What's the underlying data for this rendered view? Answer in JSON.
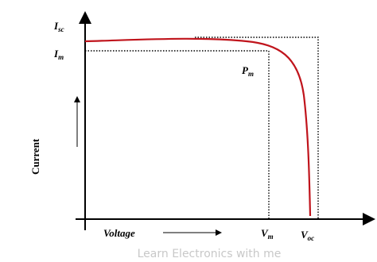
{
  "labels": {
    "isc": {
      "main": "I",
      "sub": "sc"
    },
    "im": {
      "main": "I",
      "sub": "m"
    },
    "pm": {
      "main": "P",
      "sub": "m"
    },
    "vm": {
      "main": "V",
      "sub": "m"
    },
    "voc": {
      "main": "V",
      "sub": "oc"
    },
    "x_axis": "Voltage",
    "y_axis": "Current"
  },
  "watermark": "Learn Electronics with me"
}
